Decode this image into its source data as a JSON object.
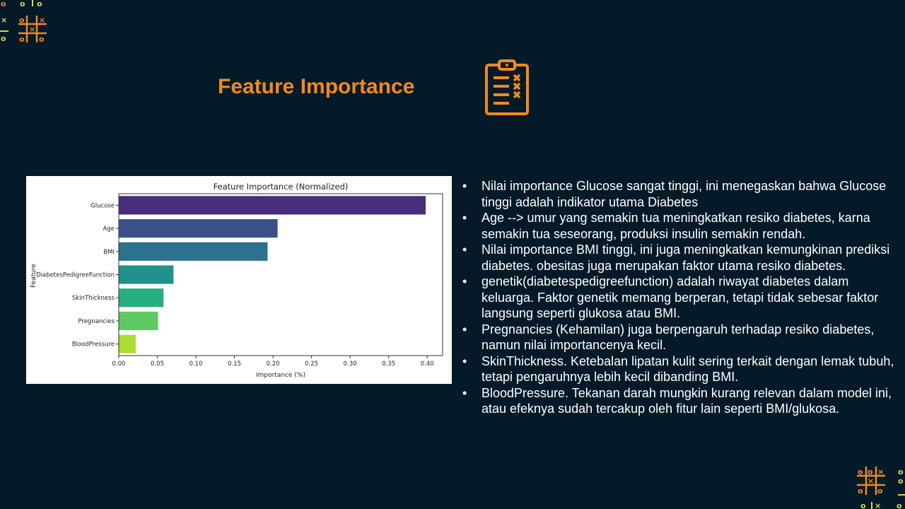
{
  "slide": {
    "title": "Feature Importance",
    "accent_color": "#f28a1e",
    "background_color": "#041a28",
    "decor_icons": [
      "tic-tac-toe-icon",
      "clipboard-checklist-icon"
    ]
  },
  "chart_data": {
    "type": "bar",
    "orientation": "horizontal",
    "title": "Feature Importance (Normalized)",
    "xlabel": "Importance (%)",
    "ylabel": "Feature",
    "categories": [
      "Glucose",
      "Age",
      "BMI",
      "DiabetesPedigreeFunction",
      "SkinThickness",
      "Pregnancies",
      "BloodPressure"
    ],
    "values": [
      0.398,
      0.206,
      0.193,
      0.071,
      0.058,
      0.051,
      0.022
    ],
    "colors": [
      "#472d7b",
      "#3b518b",
      "#2c718e",
      "#21918c",
      "#28ae80",
      "#5ec962",
      "#addc30"
    ],
    "xlim": [
      0,
      0.42
    ],
    "xticks": [
      "0.00",
      "0.05",
      "0.10",
      "0.15",
      "0.20",
      "0.25",
      "0.30",
      "0.35",
      "0.40"
    ],
    "grid": false,
    "legend": false
  },
  "bullets": [
    "Nilai importance Glucose sangat tinggi, ini menegaskan bahwa Glucose tinggi adalah indikator utama Diabetes",
    "Age --> umur yang semakin tua meningkatkan resiko diabetes, karna semakin tua seseorang, produksi insulin semakin rendah.",
    "Nilai importance BMI tinggi, ini juga meningkatkan kemungkinan prediksi diabetes. obesitas juga merupakan faktor utama resiko diabetes.",
    "genetik(diabetespedigreefunction) adalah riwayat diabetes dalam keluarga. Faktor genetik memang berperan, tetapi tidak sebesar faktor langsung seperti glukosa atau BMI.",
    "Pregnancies (Kehamilan) juga berpengaruh terhadap resiko diabetes, namun nilai importancenya kecil.",
    "SkinThickness. Ketebalan lipatan kulit sering terkait dengan lemak tubuh, tetapi pengaruhnya lebih kecil dibanding BMI.",
    "BloodPressure. Tekanan darah mungkin kurang relevan dalam model ini, atau efeknya sudah tercakup oleh fitur lain seperti BMI/glukosa."
  ]
}
